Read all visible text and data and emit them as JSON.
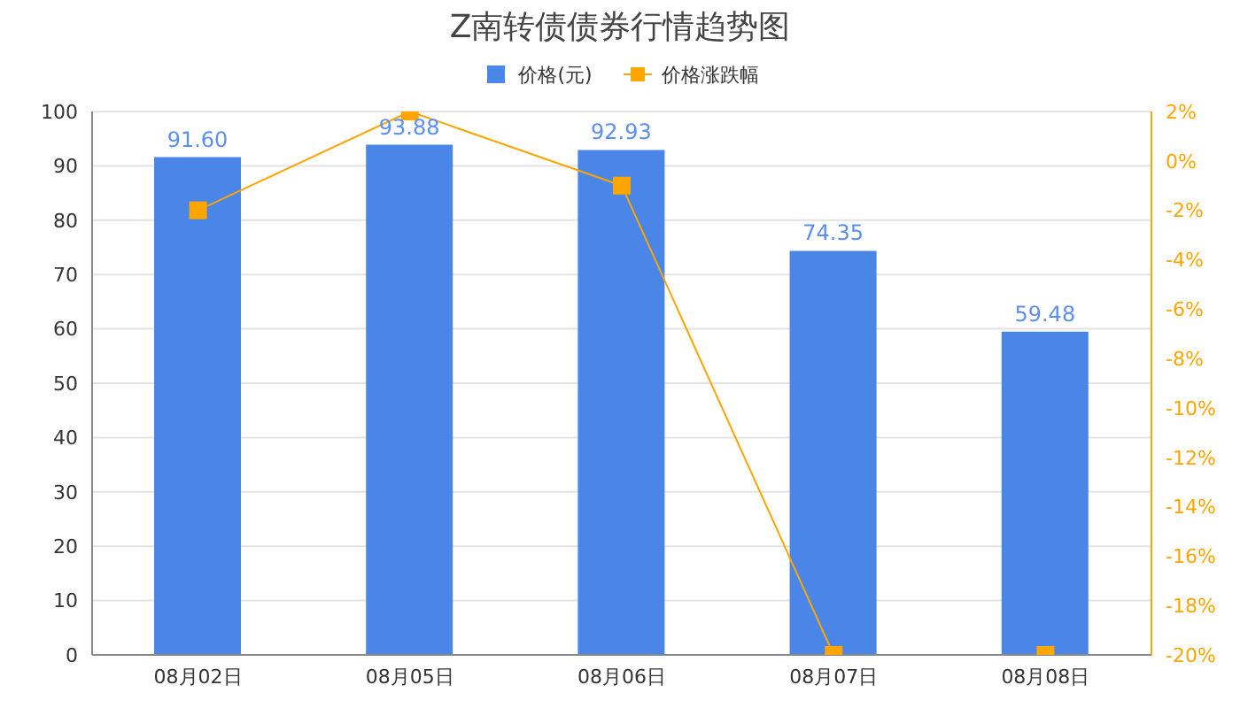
{
  "chart_data": {
    "type": "bar",
    "title": "Z南转债债券行情趋势图",
    "categories": [
      "08月02日",
      "08月05日",
      "08月06日",
      "08月07日",
      "08月08日"
    ],
    "series": [
      {
        "name": "价格(元)",
        "color": "#4a86e8",
        "values": [
          91.6,
          93.88,
          92.93,
          74.35,
          59.48
        ],
        "value_labels": [
          "91.60",
          "93.88",
          "92.93",
          "74.35",
          "59.48"
        ]
      },
      {
        "name": "价格涨跌幅",
        "type": "line",
        "axis": "y2",
        "color": "#ffa500",
        "values": [
          -2,
          2,
          -1,
          -20,
          -20
        ]
      }
    ],
    "ylim": [
      0,
      100
    ],
    "yticks": [
      0,
      10,
      20,
      30,
      40,
      50,
      60,
      70,
      80,
      90,
      100
    ],
    "y2lim": [
      -20,
      2
    ],
    "y2ticks": [
      {
        "value": 2,
        "label": "2%"
      },
      {
        "value": 0,
        "label": "0%"
      },
      {
        "value": -2,
        "label": "-2%"
      },
      {
        "value": -4,
        "label": "-4%"
      },
      {
        "value": -6,
        "label": "-6%"
      },
      {
        "value": -8,
        "label": "-8%"
      },
      {
        "value": -10,
        "label": "-10%"
      },
      {
        "value": -12,
        "label": "-12%"
      },
      {
        "value": -14,
        "label": "-14%"
      },
      {
        "value": -16,
        "label": "-16%"
      },
      {
        "value": -18,
        "label": "-18%"
      },
      {
        "value": -20,
        "label": "-20%"
      }
    ],
    "grid": "y",
    "legend": "top",
    "marker": "square"
  }
}
